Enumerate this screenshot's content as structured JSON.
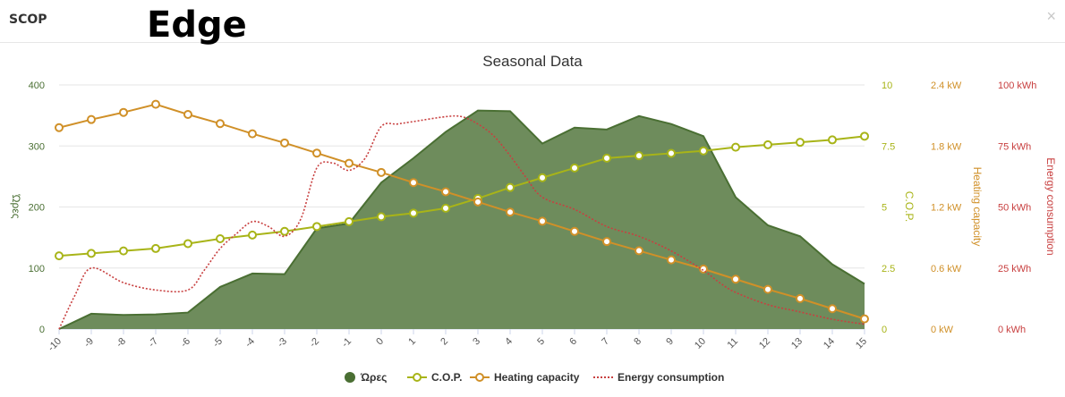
{
  "app": {
    "title": "SCOP",
    "heading": "Edge",
    "close_label": "×"
  },
  "colors": {
    "hours": "#4a6f33",
    "hours_fill": "#6e8c5c",
    "cop": "#a8b418",
    "heating": "#d09028",
    "energy": "#c84040",
    "grid": "#e6e6e6"
  },
  "chart_data": {
    "type": "area",
    "title": "Seasonal Data",
    "x": [
      -10,
      -9,
      -8,
      -7,
      -6,
      -5,
      -4,
      -3,
      -2,
      -1,
      0,
      1,
      2,
      3,
      4,
      5,
      6,
      7,
      8,
      9,
      10,
      11,
      12,
      13,
      14,
      15
    ],
    "xlim": [
      -10,
      15
    ],
    "series": [
      {
        "name": "Ώρες",
        "kind": "area",
        "axis": "hours",
        "values": [
          0,
          25,
          23,
          24,
          27,
          69,
          91,
          90,
          165,
          173,
          240,
          280,
          323,
          358,
          357,
          304,
          330,
          327,
          349,
          336,
          316,
          216,
          170,
          152,
          106,
          74
        ]
      },
      {
        "name": "C.O.P.",
        "kind": "line",
        "axis": "cop",
        "values": [
          3.0,
          3.1,
          3.2,
          3.3,
          3.5,
          3.7,
          3.85,
          4.0,
          4.2,
          4.4,
          4.6,
          4.75,
          4.95,
          5.35,
          5.8,
          6.2,
          6.6,
          7.0,
          7.1,
          7.2,
          7.3,
          7.45,
          7.55,
          7.65,
          7.75,
          7.9
        ]
      },
      {
        "name": "Heating capacity",
        "kind": "line",
        "axis": "heating",
        "values": [
          1.98,
          2.06,
          2.13,
          2.21,
          2.11,
          2.02,
          1.92,
          1.83,
          1.73,
          1.63,
          1.54,
          1.44,
          1.35,
          1.25,
          1.15,
          1.06,
          0.96,
          0.86,
          0.77,
          0.68,
          0.59,
          0.49,
          0.39,
          0.3,
          0.2,
          0.1
        ]
      },
      {
        "name": "Energy consumption",
        "kind": "dashed",
        "axis": "energy",
        "x": [
          -10,
          -9.5,
          -9,
          -8,
          -7,
          -6,
          -5.5,
          -5,
          -4.5,
          -4,
          -3.5,
          -3,
          -2.5,
          -2,
          -1.5,
          -1,
          -0.5,
          0,
          0.5,
          1,
          2,
          2.5,
          3,
          3.5,
          4,
          4.5,
          5,
          6,
          7,
          8,
          9,
          10,
          10.5,
          11,
          12,
          13,
          14,
          15
        ],
        "values": [
          0,
          14,
          25,
          19,
          16,
          16,
          24,
          33,
          39,
          44,
          42,
          38,
          45,
          66,
          68,
          65,
          70,
          83,
          84,
          85,
          87,
          87,
          84,
          79,
          71,
          62,
          54,
          49,
          42,
          38,
          32,
          24,
          19,
          15,
          10,
          7,
          4,
          2
        ]
      }
    ],
    "axes": {
      "hours": {
        "label": "Ώρες",
        "min": 0,
        "max": 400,
        "ticks": [
          0,
          100,
          200,
          300,
          400
        ],
        "tick_labels": [
          "0",
          "100",
          "200",
          "300",
          "400"
        ]
      },
      "cop": {
        "label": "C.O.P.",
        "min": 0,
        "max": 10,
        "ticks": [
          0,
          2.5,
          5,
          7.5,
          10
        ],
        "tick_labels": [
          "0",
          "2.5",
          "5",
          "7.5",
          "10"
        ]
      },
      "heating": {
        "label": "Heating capacity",
        "min": 0,
        "max": 2.4,
        "ticks": [
          0,
          0.6,
          1.2,
          1.8,
          2.4
        ],
        "tick_labels": [
          "0 kW",
          "0.6 kW",
          "1.2 kW",
          "1.8 kW",
          "2.4 kW"
        ]
      },
      "energy": {
        "label": "Energy consumption",
        "min": 0,
        "max": 100,
        "ticks": [
          0,
          25,
          50,
          75,
          100
        ],
        "tick_labels": [
          "0 kWh",
          "25 kWh",
          "50 kWh",
          "75 kWh",
          "100 kWh"
        ]
      }
    },
    "grid": true,
    "legend": {
      "position": "bottom",
      "entries": [
        "Ώρες",
        "C.O.P.",
        "Heating capacity",
        "Energy consumption"
      ]
    }
  }
}
